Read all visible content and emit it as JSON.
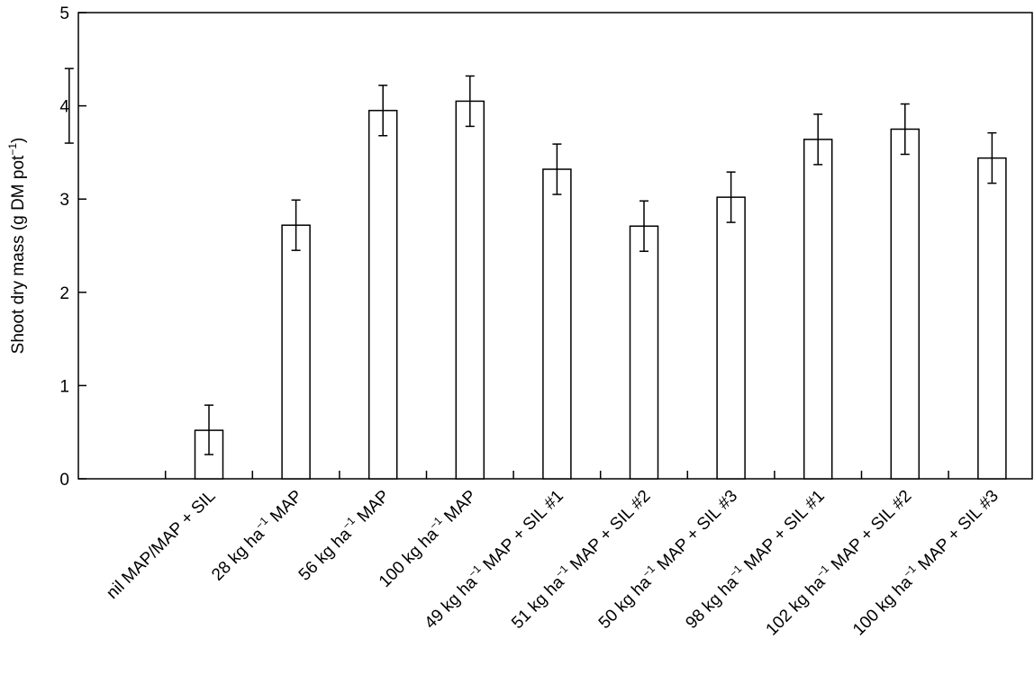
{
  "chart_data": {
    "type": "bar",
    "ylabel": "Shoot dry mass (g DM pot",
    "ylabel_sup": "−1",
    "ylabel_end": ")",
    "ylim": [
      0,
      5
    ],
    "yticks": [
      0,
      1,
      2,
      3,
      4,
      5
    ],
    "grid": false,
    "colors": {
      "bar_fill": "#ffffff",
      "stroke": "#000000"
    },
    "unlabeled_error_bar": {
      "center": 4.0,
      "low": 3.6,
      "high": 4.4
    },
    "categories": [
      {
        "parts": [
          "nil MAP/MAP + SIL"
        ]
      },
      {
        "parts": [
          "28 kg ha",
          "−1",
          " MAP"
        ]
      },
      {
        "parts": [
          "56 kg ha",
          "−1",
          " MAP"
        ]
      },
      {
        "parts": [
          "100 kg ha",
          "−1",
          " MAP"
        ]
      },
      {
        "parts": [
          "49 kg ha",
          "−1",
          " MAP + SIL #1"
        ]
      },
      {
        "parts": [
          "51 kg ha",
          "−1",
          " MAP + SIL #2"
        ]
      },
      {
        "parts": [
          "50 kg ha",
          "−1",
          " MAP + SIL #3"
        ]
      },
      {
        "parts": [
          "98 kg ha",
          "−1",
          " MAP + SIL #1"
        ]
      },
      {
        "parts": [
          "102 kg ha",
          "−1",
          " MAP + SIL #2"
        ]
      },
      {
        "parts": [
          "100 kg ha",
          "−1",
          " MAP + SIL #3"
        ]
      }
    ],
    "values": [
      0.52,
      2.72,
      3.95,
      4.05,
      3.32,
      2.71,
      3.02,
      3.64,
      3.75,
      3.44
    ],
    "error_low": [
      0.26,
      2.45,
      3.68,
      3.78,
      3.05,
      2.44,
      2.75,
      3.37,
      3.48,
      3.17
    ],
    "error_high": [
      0.79,
      2.99,
      4.22,
      4.32,
      3.59,
      2.98,
      3.29,
      3.91,
      4.02,
      3.71
    ]
  }
}
